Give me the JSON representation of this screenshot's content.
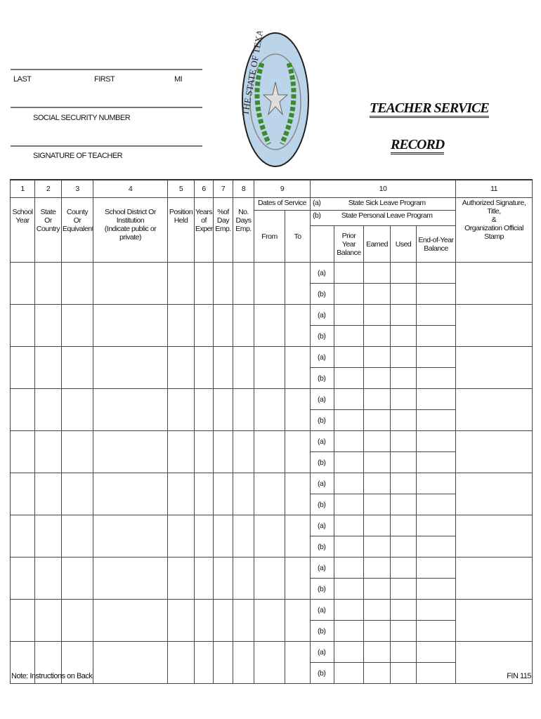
{
  "header": {
    "last_label": "LAST",
    "first_label": "FIRST",
    "mi_label": "MI",
    "ssn_label": "SOCIAL SECURITY NUMBER",
    "signature_label": "SIGNATURE OF TEACHER",
    "seal_text": "THE STATE OF TEXAS",
    "title_line1": "TEACHER SERVICE",
    "title_line2": "RECORD"
  },
  "table": {
    "col_numbers": [
      "1",
      "2",
      "3",
      "4",
      "5",
      "6",
      "7",
      "8",
      "9",
      "10",
      "11"
    ],
    "col1": [
      "School",
      "Year"
    ],
    "col2": [
      "State",
      "Or",
      "Country"
    ],
    "col3": [
      "County",
      "Or",
      "Equivalent"
    ],
    "col4": [
      "School District Or Institution",
      "(Indicate public or private)"
    ],
    "col5": [
      "Position",
      "Held"
    ],
    "col6": [
      "Years",
      "of",
      "Exper."
    ],
    "col7": [
      "%of",
      "Day",
      "Emp."
    ],
    "col8": [
      "No.",
      "Days",
      "Emp."
    ],
    "col9": {
      "title": "Dates of Service",
      "from": "From",
      "to": "To"
    },
    "col10": {
      "a_marker": "(a)",
      "a_label": "State Sick Leave Program",
      "b_marker": "(b)",
      "b_label": "State Personal Leave Program",
      "sub": [
        [
          "Prior Year",
          "Balance"
        ],
        [
          "Earned"
        ],
        [
          "Used"
        ],
        [
          "End-of-Year",
          "Balance"
        ]
      ]
    },
    "col11": [
      "Authorized Signature,",
      "Title,",
      "&",
      "Organization Official Stamp"
    ],
    "rows": [
      {
        "a": "(a)",
        "b": "(b)"
      },
      {
        "a": "(a)",
        "b": "(b)"
      },
      {
        "a": "(a)",
        "b": "(b)"
      },
      {
        "a": "(a)",
        "b": "(b)"
      },
      {
        "a": "(a)",
        "b": "(b)"
      },
      {
        "a": "(a)",
        "b": "(b)"
      },
      {
        "a": "(a)",
        "b": "(b)"
      },
      {
        "a": "(a)",
        "b": "(b)"
      },
      {
        "a": "(a)",
        "b": "(b)"
      },
      {
        "a": "(a)",
        "b": "(b)"
      }
    ]
  },
  "footer": {
    "note": "Note:  Instructions on Back",
    "form_id": "FIN 115"
  },
  "colors": {
    "seal_fill": "#bcd4ea",
    "wreath": "#3d8a2e",
    "border": "#444444"
  }
}
